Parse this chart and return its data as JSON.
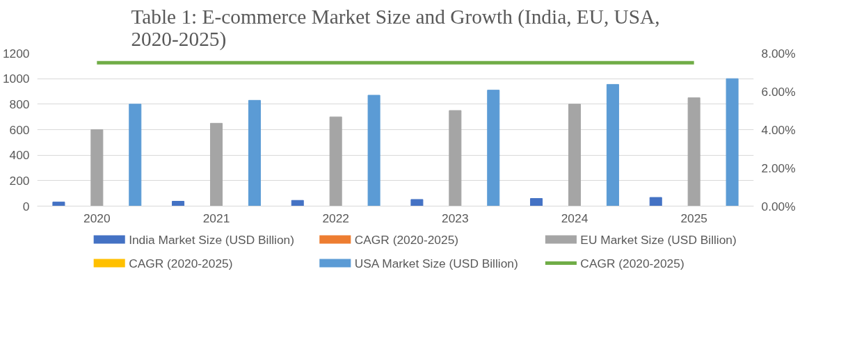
{
  "chart_data": {
    "type": "bar",
    "title": "Table 1: E-commerce Market Size and Growth (India, EU, USA, 2020-2025)",
    "categories": [
      "2020",
      "2021",
      "2022",
      "2023",
      "2024",
      "2025"
    ],
    "series": [
      {
        "name": "India Market Size (USD Billion)",
        "color": "#4472c4",
        "values": [
          32,
          38,
          45,
          52,
          60,
          68
        ]
      },
      {
        "name": "CAGR (2020-2025)",
        "color": "#ed7d31",
        "values": [
          null,
          null,
          null,
          null,
          null,
          null
        ]
      },
      {
        "name": "EU Market Size (USD Billion)",
        "color": "#a5a5a5",
        "values": [
          600,
          650,
          700,
          750,
          800,
          850
        ]
      },
      {
        "name": "CAGR (2020-2025)",
        "color": "#ffc000",
        "values": [
          null,
          null,
          null,
          null,
          null,
          null
        ]
      },
      {
        "name": "USA Market Size (USD Billion)",
        "color": "#5b9bd5",
        "values": [
          800,
          830,
          870,
          910,
          955,
          1000
        ]
      },
      {
        "name": "CAGR (2020-2025)",
        "color": "#70ad47",
        "type": "line",
        "axis": "y2",
        "values": [
          7.5,
          7.5,
          7.5,
          7.5,
          7.5,
          7.5
        ]
      }
    ],
    "ylim": [
      0,
      1200
    ],
    "yticks": [
      0,
      200,
      400,
      600,
      800,
      1000,
      1200
    ],
    "y2lim": [
      0,
      8
    ],
    "y2ticks": [
      {
        "value": 0,
        "label": "0.00%"
      },
      {
        "value": 2,
        "label": "2.00%"
      },
      {
        "value": 4,
        "label": "4.00%"
      },
      {
        "value": 6,
        "label": "6.00%"
      },
      {
        "value": 8,
        "label": "8.00%"
      }
    ],
    "grid": "y",
    "legend": "bottom"
  }
}
